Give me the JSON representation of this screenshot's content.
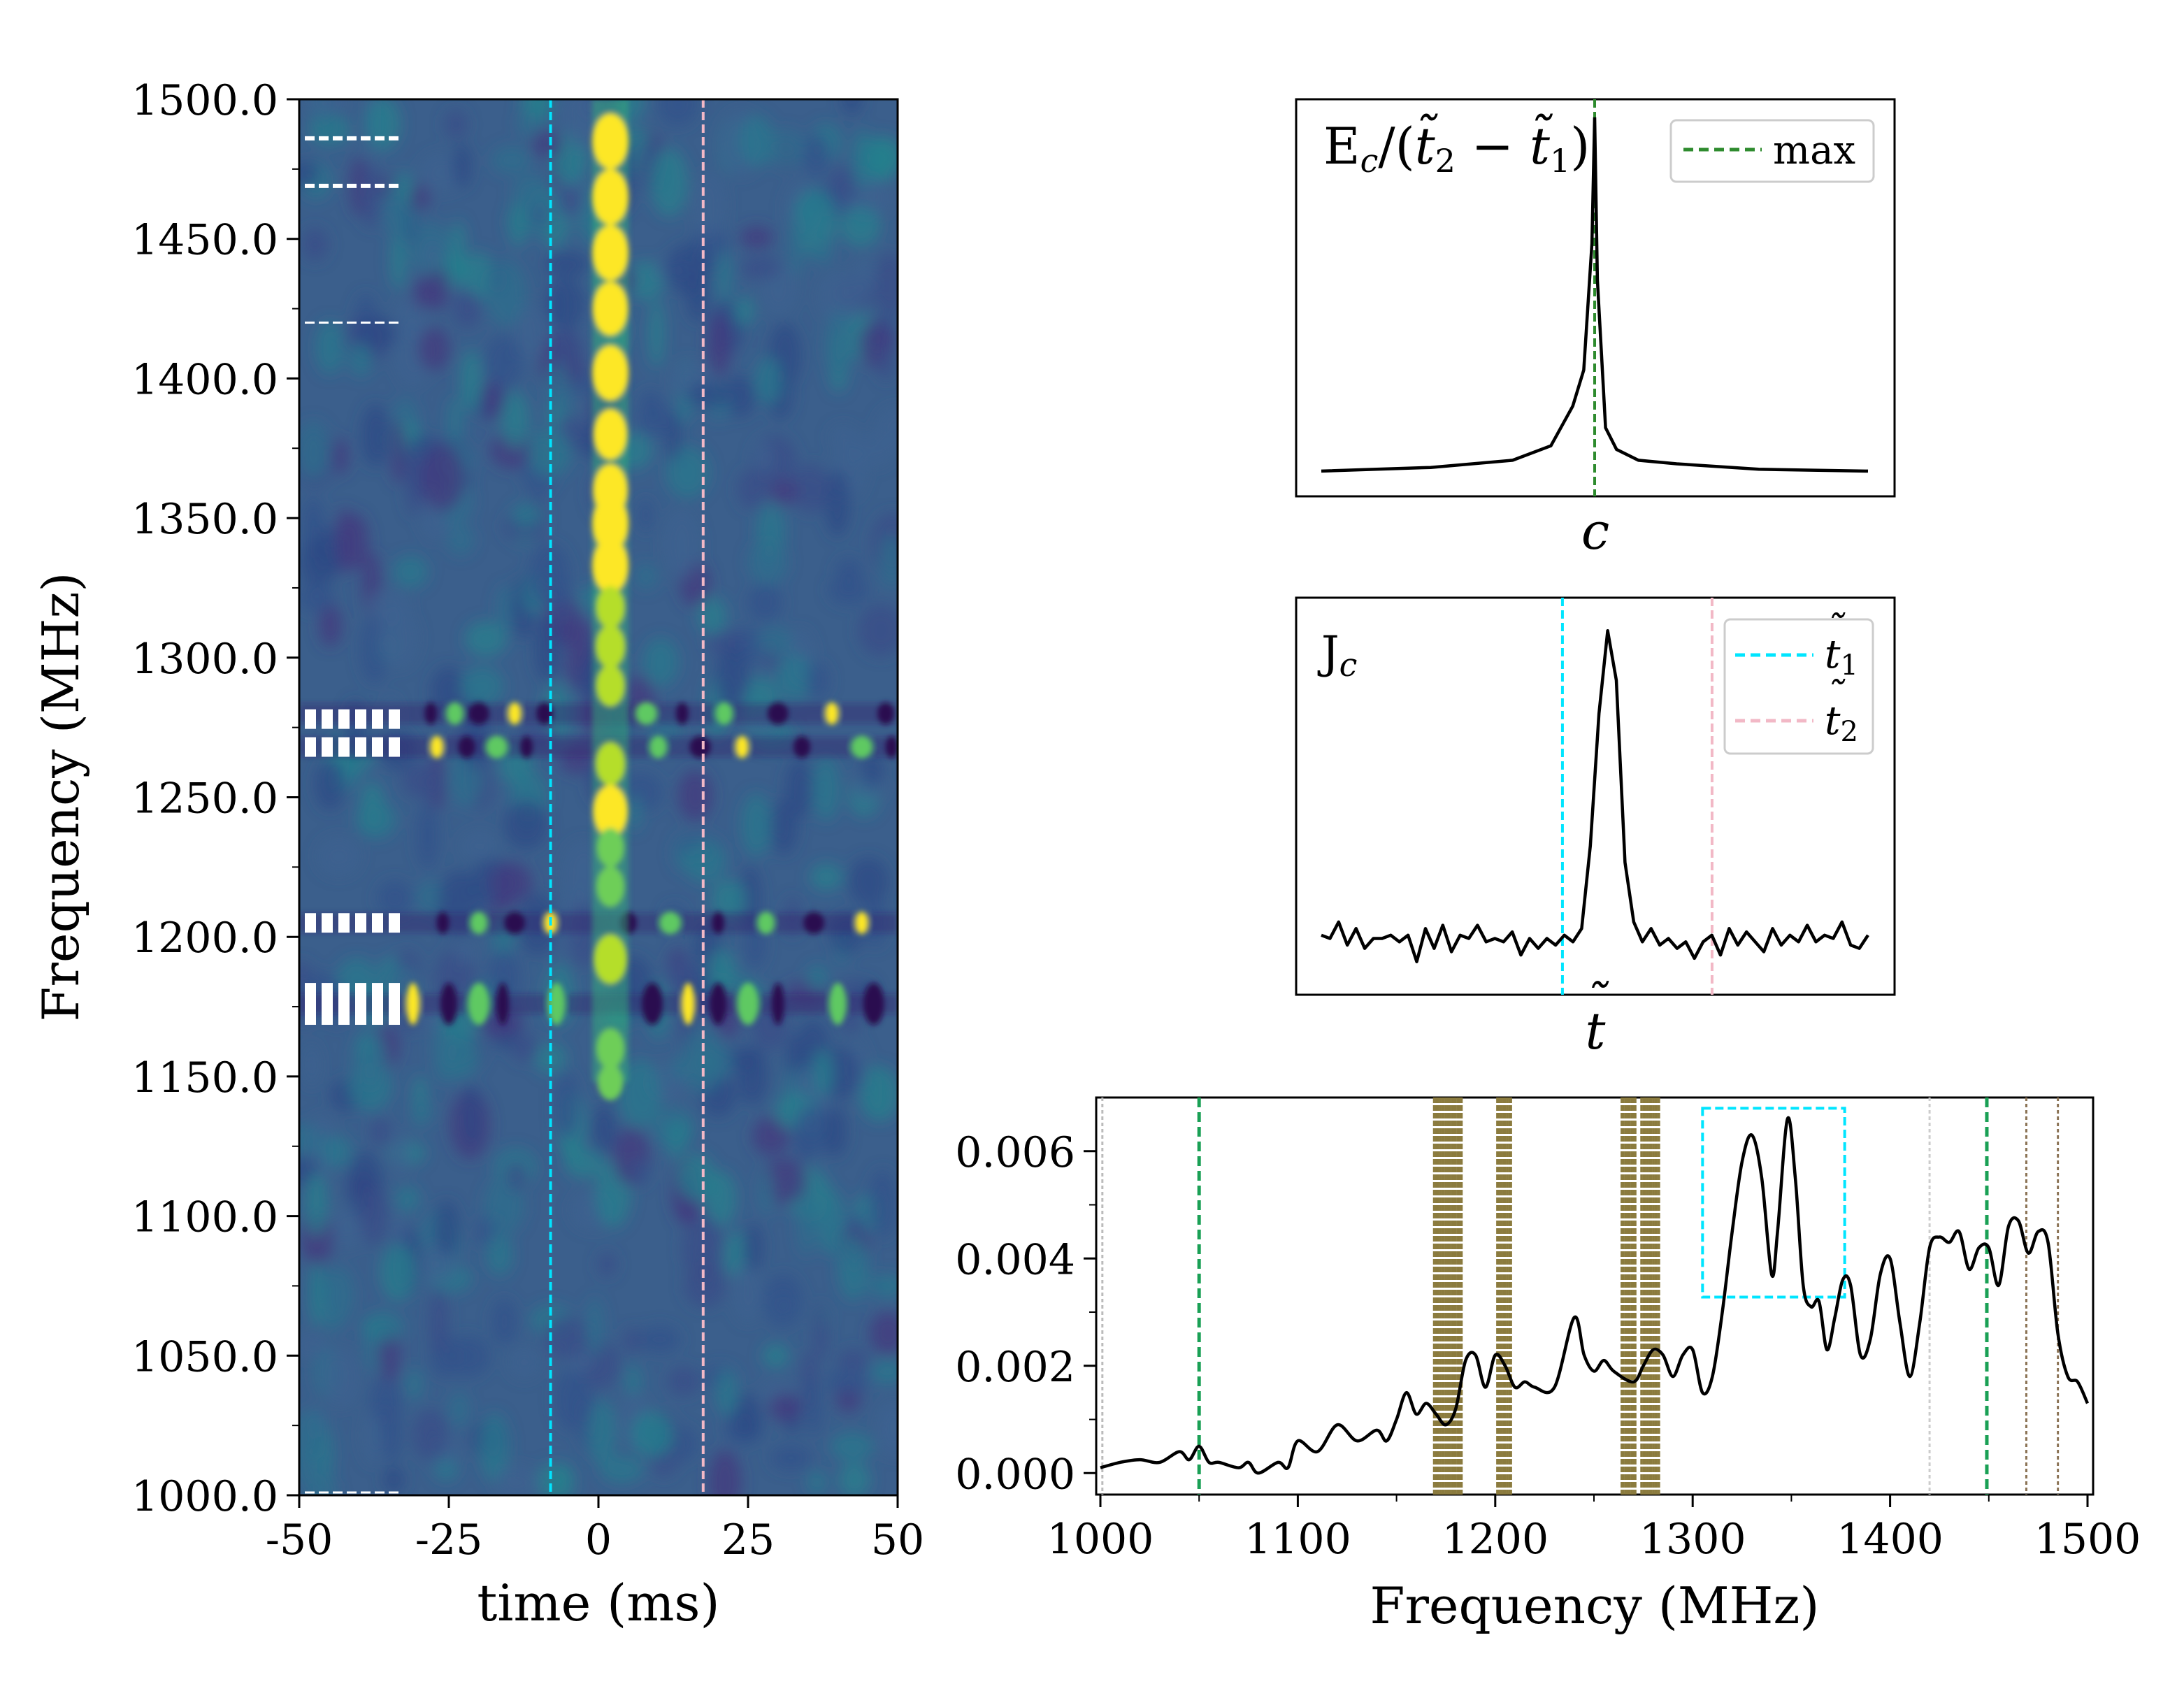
{
  "chart_data": [
    {
      "type": "heatmap",
      "name": "dynamic-spectrum",
      "xlabel": "time (ms)",
      "ylabel": "Frequency (MHz)",
      "xlim": [
        -50,
        50
      ],
      "ylim": [
        1000,
        1500
      ],
      "xticks": [
        -50,
        -25,
        0,
        25,
        50
      ],
      "xtick_labels": [
        "-50",
        "-25",
        "0",
        "25",
        "50"
      ],
      "yticks": [
        1000,
        1050,
        1100,
        1150,
        1200,
        1250,
        1300,
        1350,
        1400,
        1450,
        1500
      ],
      "ytick_labels": [
        "1000.0",
        "1050.0",
        "1100.0",
        "1150.0",
        "1200.0",
        "1250.0",
        "1300.0",
        "1350.0",
        "1400.0",
        "1450.0",
        "1500.0"
      ],
      "vlines": [
        {
          "x": -8,
          "color": "#00e5ff",
          "label": "t1"
        },
        {
          "x": 17.5,
          "color": "#f2b8c6",
          "label": "t2"
        }
      ],
      "masked_channels": [
        {
          "center": 1486,
          "width": 2,
          "style": "dashed"
        },
        {
          "center": 1469,
          "width": 2,
          "style": "dashed"
        },
        {
          "center": 1420,
          "width": 1,
          "style": "dashed"
        },
        {
          "center": 1278,
          "width": 7,
          "style": "blocks"
        },
        {
          "center": 1268,
          "width": 7,
          "style": "blocks"
        },
        {
          "center": 1205,
          "width": 7,
          "style": "blocks"
        },
        {
          "center": 1176,
          "width": 15,
          "style": "blocks"
        },
        {
          "center": 1001,
          "width": 1,
          "style": "dashed"
        }
      ],
      "burst": {
        "time_center": 2,
        "brightness_profile": [
          {
            "freq": 1485,
            "amp": 1.0
          },
          {
            "freq": 1465,
            "amp": 1.0
          },
          {
            "freq": 1445,
            "amp": 1.0
          },
          {
            "freq": 1425,
            "amp": 0.95
          },
          {
            "freq": 1402,
            "amp": 1.0
          },
          {
            "freq": 1380,
            "amp": 0.85
          },
          {
            "freq": 1360,
            "amp": 0.9
          },
          {
            "freq": 1348,
            "amp": 1.0
          },
          {
            "freq": 1333,
            "amp": 1.0
          },
          {
            "freq": 1318,
            "amp": 0.55
          },
          {
            "freq": 1304,
            "amp": 0.6
          },
          {
            "freq": 1290,
            "amp": 0.55
          },
          {
            "freq": 1262,
            "amp": 0.6
          },
          {
            "freq": 1245,
            "amp": 0.9
          },
          {
            "freq": 1232,
            "amp": 0.45
          },
          {
            "freq": 1218,
            "amp": 0.5
          },
          {
            "freq": 1192,
            "amp": 0.8
          },
          {
            "freq": 1160,
            "amp": 0.5
          },
          {
            "freq": 1148,
            "amp": 0.35
          }
        ]
      },
      "rfi_rows": [
        {
          "freq": 1280,
          "times": [
            -28,
            -24,
            -20,
            -14,
            -9,
            8,
            14,
            21,
            30,
            39,
            48
          ]
        },
        {
          "freq": 1268,
          "times": [
            -27,
            -22,
            -17,
            -12,
            10,
            17,
            24,
            34,
            44,
            49
          ]
        },
        {
          "freq": 1205,
          "times": [
            -26,
            -20,
            -14,
            -8,
            5,
            12,
            20,
            28,
            36,
            44
          ]
        },
        {
          "freq": 1176,
          "times": [
            -31,
            -25,
            -20,
            -16,
            -7,
            9,
            15,
            20,
            25,
            30,
            40,
            46
          ]
        }
      ]
    },
    {
      "type": "line",
      "name": "energy-vs-c",
      "xlabel": "c",
      "ylabel": "",
      "inset_label": "E_c/(t2 - t1)",
      "legend": [
        {
          "label": "max",
          "color": "#2e8b2e",
          "style": "dashed"
        }
      ],
      "legend_position": "top-right",
      "x": [
        0,
        0.2,
        0.35,
        0.42,
        0.46,
        0.48,
        0.495,
        0.5,
        0.505,
        0.52,
        0.54,
        0.58,
        0.65,
        0.8,
        1.0
      ],
      "y": [
        0.02,
        0.03,
        0.05,
        0.09,
        0.2,
        0.3,
        0.65,
        1.0,
        0.55,
        0.14,
        0.08,
        0.05,
        0.04,
        0.025,
        0.02
      ],
      "peak_x": 0.5,
      "ylim": [
        -0.05,
        1.05
      ]
    },
    {
      "type": "line",
      "name": "jc-vs-t",
      "xlabel": "t",
      "ylabel": "",
      "inset_label": "J",
      "inset_subscript": "c",
      "legend": [
        {
          "label": "t",
          "subscript": "1",
          "color": "#00e5ff",
          "style": "dashed"
        },
        {
          "label": "t",
          "subscript": "2",
          "color": "#f2b8c6",
          "style": "dashed"
        }
      ],
      "legend_position": "top-right",
      "x_t1": 0.445,
      "x_t2": 0.695,
      "values": [
        0.08,
        0.07,
        0.12,
        0.05,
        0.1,
        0.04,
        0.07,
        0.07,
        0.08,
        0.06,
        0.08,
        0.0,
        0.1,
        0.04,
        0.11,
        0.03,
        0.08,
        0.07,
        0.11,
        0.06,
        0.07,
        0.06,
        0.09,
        0.02,
        0.07,
        0.04,
        0.07,
        0.05,
        0.08,
        0.06,
        0.1,
        0.35,
        0.75,
        1.0,
        0.85,
        0.3,
        0.12,
        0.06,
        0.1,
        0.05,
        0.07,
        0.04,
        0.06,
        0.01,
        0.06,
        0.08,
        0.02,
        0.1,
        0.05,
        0.09,
        0.06,
        0.03,
        0.1,
        0.05,
        0.08,
        0.06,
        0.11,
        0.06,
        0.08,
        0.07,
        0.12,
        0.05,
        0.04,
        0.08
      ],
      "ylim": [
        -0.1,
        1.1
      ]
    },
    {
      "type": "line",
      "name": "spectrum",
      "xlabel": "Frequency (MHz)",
      "ylabel": "",
      "xlim": [
        1000,
        1500
      ],
      "ylim": [
        -0.0004,
        0.007
      ],
      "xticks": [
        1000,
        1100,
        1200,
        1300,
        1400,
        1500
      ],
      "xtick_labels": [
        "1000",
        "1100",
        "1200",
        "1300",
        "1400",
        "1500"
      ],
      "yticks": [
        0.0,
        0.002,
        0.004,
        0.006
      ],
      "ytick_labels": [
        "0.000",
        "0.002",
        "0.004",
        "0.006"
      ],
      "x": [
        1000,
        1010,
        1020,
        1030,
        1040,
        1045,
        1050,
        1055,
        1060,
        1070,
        1075,
        1080,
        1090,
        1095,
        1100,
        1110,
        1120,
        1130,
        1140,
        1145,
        1150,
        1155,
        1160,
        1165,
        1170,
        1175,
        1180,
        1185,
        1190,
        1195,
        1200,
        1205,
        1210,
        1215,
        1220,
        1230,
        1240,
        1245,
        1250,
        1255,
        1260,
        1270,
        1275,
        1280,
        1285,
        1290,
        1295,
        1300,
        1305,
        1310,
        1315,
        1320,
        1325,
        1330,
        1335,
        1340,
        1343,
        1348,
        1352,
        1356,
        1360,
        1364,
        1368,
        1372,
        1376,
        1380,
        1385,
        1390,
        1395,
        1400,
        1405,
        1410,
        1415,
        1420,
        1425,
        1430,
        1435,
        1440,
        1445,
        1450,
        1455,
        1460,
        1465,
        1470,
        1475,
        1480,
        1485,
        1490,
        1495,
        1500
      ],
      "y": [
        0.0001,
        0.0002,
        0.00025,
        0.0002,
        0.0004,
        0.00025,
        0.0005,
        0.0002,
        0.0002,
        0.0001,
        0.0002,
        0.0,
        0.0002,
        0.0001,
        0.0006,
        0.0004,
        0.0009,
        0.0006,
        0.0008,
        0.0006,
        0.001,
        0.0015,
        0.0011,
        0.0013,
        0.0011,
        0.0009,
        0.0012,
        0.0021,
        0.0022,
        0.0016,
        0.0022,
        0.002,
        0.0016,
        0.0017,
        0.0016,
        0.0016,
        0.0029,
        0.0022,
        0.0019,
        0.0021,
        0.0019,
        0.0017,
        0.002,
        0.0023,
        0.0022,
        0.0018,
        0.0022,
        0.0023,
        0.0015,
        0.0018,
        0.003,
        0.0045,
        0.0058,
        0.0063,
        0.0055,
        0.0037,
        0.0045,
        0.0066,
        0.0055,
        0.0035,
        0.0031,
        0.0032,
        0.0023,
        0.0029,
        0.0036,
        0.0035,
        0.0022,
        0.0025,
        0.0037,
        0.004,
        0.0028,
        0.0018,
        0.0028,
        0.0042,
        0.0044,
        0.0043,
        0.0045,
        0.0038,
        0.0042,
        0.0042,
        0.0035,
        0.0046,
        0.0047,
        0.0041,
        0.0045,
        0.0043,
        0.0026,
        0.0018,
        0.0017,
        0.0013
      ],
      "vlines": [
        {
          "x": 1001,
          "color": "#bbbbbb",
          "style": "dotted"
        },
        {
          "x": 1050,
          "color": "#1aa055",
          "style": "dashed"
        },
        {
          "x": 1420,
          "color": "#cccccc",
          "style": "dotted"
        },
        {
          "x": 1449,
          "color": "#1aa055",
          "style": "dashed"
        },
        {
          "x": 1469,
          "color": "#8b7355",
          "style": "dotted"
        },
        {
          "x": 1485,
          "color": "#8b7355",
          "style": "dotted"
        }
      ],
      "masked_bands": [
        [
          1169,
          1183
        ],
        [
          1201,
          1208
        ],
        [
          1264,
          1271
        ],
        [
          1274,
          1283
        ]
      ],
      "highlight_box": {
        "x": [
          1305,
          1377
        ],
        "y": [
          0.00328,
          0.0068
        ],
        "color": "#00e5ff"
      }
    }
  ]
}
